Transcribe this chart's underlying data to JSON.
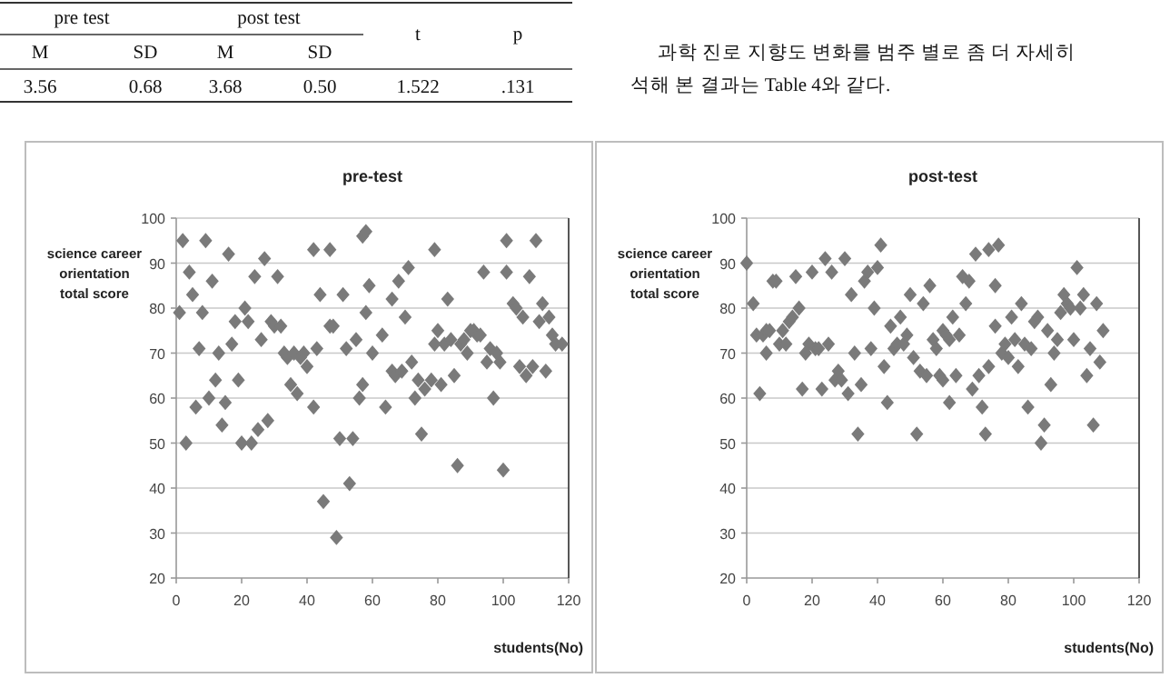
{
  "chart_data": [
    {
      "type": "other",
      "annotations": [
        "pre  test",
        "post  test",
        "t",
        "p",
        "M",
        "SD",
        "M",
        "SD",
        "3.56",
        "0.68",
        "3.68",
        "0.50",
        "1.522",
        ".131",
        "과학 진로 지향도 변화를 범주 별로 좀 더 자세히",
        "석해 본 결과는 Table 4와 같다."
      ]
    },
    {
      "type": "scatter",
      "title": "pre-test",
      "xlabel": "students(No)",
      "ylabel": "science career orientation total score",
      "color": "#7a7a7a",
      "marker": "diamond",
      "grid": "y",
      "xlim": [
        0,
        120
      ],
      "xticks": [
        0,
        20,
        40,
        60,
        80,
        100,
        120
      ],
      "ylim": [
        20,
        100
      ],
      "yticks": [
        20,
        30,
        40,
        50,
        60,
        70,
        80,
        90,
        100
      ],
      "x": [
        1,
        2,
        3,
        4,
        5,
        6,
        7,
        8,
        9,
        10,
        11,
        12,
        13,
        14,
        15,
        16,
        17,
        18,
        19,
        20,
        21,
        22,
        23,
        24,
        25,
        26,
        27,
        28,
        29,
        30,
        31,
        32,
        33,
        34,
        35,
        36,
        37,
        38,
        39,
        40,
        42,
        42,
        43,
        44,
        45,
        47,
        47,
        48,
        49,
        50,
        51,
        52,
        53,
        54,
        55,
        56,
        57,
        57,
        58,
        58,
        59,
        60,
        63,
        64,
        66,
        66,
        67,
        68,
        69,
        70,
        71,
        72,
        73,
        74,
        75,
        76,
        78,
        79,
        79,
        80,
        81,
        82,
        83,
        84,
        85,
        86,
        87,
        88,
        89,
        90,
        91,
        92,
        93,
        94,
        95,
        96,
        97,
        98,
        99,
        100,
        101,
        101,
        103,
        104,
        105,
        106,
        107,
        108,
        109,
        110,
        111,
        112,
        113,
        114,
        115,
        116,
        118
      ],
      "values": [
        79,
        95,
        50,
        88,
        83,
        58,
        71,
        79,
        95,
        60,
        86,
        64,
        70,
        54,
        59,
        92,
        72,
        77,
        64,
        50,
        80,
        77,
        50,
        87,
        53,
        73,
        91,
        55,
        77,
        76,
        87,
        76,
        70,
        69,
        63,
        70,
        61,
        69,
        70,
        67,
        58,
        93,
        71,
        83,
        37,
        76,
        93,
        76,
        29,
        51,
        83,
        71,
        41,
        51,
        73,
        60,
        63,
        96,
        79,
        97,
        85,
        70,
        74,
        58,
        66,
        82,
        65,
        86,
        66,
        78,
        89,
        68,
        60,
        64,
        52,
        62,
        64,
        72,
        93,
        75,
        63,
        72,
        82,
        73,
        65,
        45,
        72,
        73,
        70,
        75,
        75,
        74,
        74,
        88,
        68,
        71,
        60,
        70,
        68,
        44,
        88,
        95,
        81,
        80,
        67,
        78,
        65,
        87,
        67,
        95,
        77,
        81,
        66,
        78,
        74,
        72,
        72
      ]
    },
    {
      "type": "scatter",
      "title": "post-test",
      "xlabel": "students(No)",
      "ylabel": "science career orientation total score",
      "color": "#7a7a7a",
      "marker": "diamond",
      "grid": "y",
      "xlim": [
        0,
        120
      ],
      "xticks": [
        0,
        20,
        40,
        60,
        80,
        100,
        120
      ],
      "ylim": [
        20,
        100
      ],
      "yticks": [
        20,
        30,
        40,
        50,
        60,
        70,
        80,
        90,
        100
      ],
      "x": [
        0,
        2,
        3,
        4,
        5,
        6,
        6,
        7,
        8,
        9,
        10,
        11,
        12,
        13,
        14,
        15,
        16,
        17,
        18,
        19,
        20,
        21,
        22,
        23,
        24,
        25,
        26,
        27,
        28,
        29,
        30,
        31,
        32,
        33,
        34,
        35,
        36,
        37,
        38,
        39,
        40,
        41,
        42,
        43,
        44,
        45,
        46,
        47,
        48,
        49,
        50,
        51,
        52,
        53,
        54,
        55,
        56,
        57,
        58,
        59,
        60,
        60,
        61,
        62,
        62,
        63,
        64,
        65,
        66,
        67,
        68,
        69,
        70,
        71,
        72,
        73,
        74,
        74,
        76,
        76,
        77,
        78,
        79,
        80,
        81,
        82,
        83,
        84,
        85,
        86,
        87,
        88,
        89,
        90,
        91,
        92,
        93,
        94,
        95,
        96,
        97,
        98,
        99,
        100,
        101,
        102,
        103,
        104,
        105,
        106,
        107,
        108,
        109
      ],
      "values": [
        90,
        81,
        74,
        61,
        74,
        70,
        75,
        75,
        86,
        86,
        72,
        75,
        72,
        77,
        78,
        87,
        80,
        62,
        70,
        72,
        88,
        71,
        71,
        62,
        91,
        72,
        88,
        64,
        66,
        64,
        91,
        61,
        83,
        70,
        52,
        63,
        86,
        88,
        71,
        80,
        89,
        94,
        67,
        59,
        76,
        71,
        72,
        78,
        72,
        74,
        83,
        69,
        52,
        66,
        81,
        65,
        85,
        73,
        71,
        65,
        64,
        75,
        74,
        59,
        73,
        78,
        65,
        74,
        87,
        81,
        86,
        62,
        92,
        65,
        58,
        52,
        67,
        93,
        85,
        76,
        94,
        70,
        72,
        69,
        78,
        73,
        67,
        81,
        72,
        58,
        71,
        77,
        78,
        50,
        54,
        75,
        63,
        70,
        73,
        79,
        83,
        81,
        80,
        73,
        89,
        80,
        83,
        65,
        71,
        54,
        81,
        68,
        75
      ]
    }
  ]
}
